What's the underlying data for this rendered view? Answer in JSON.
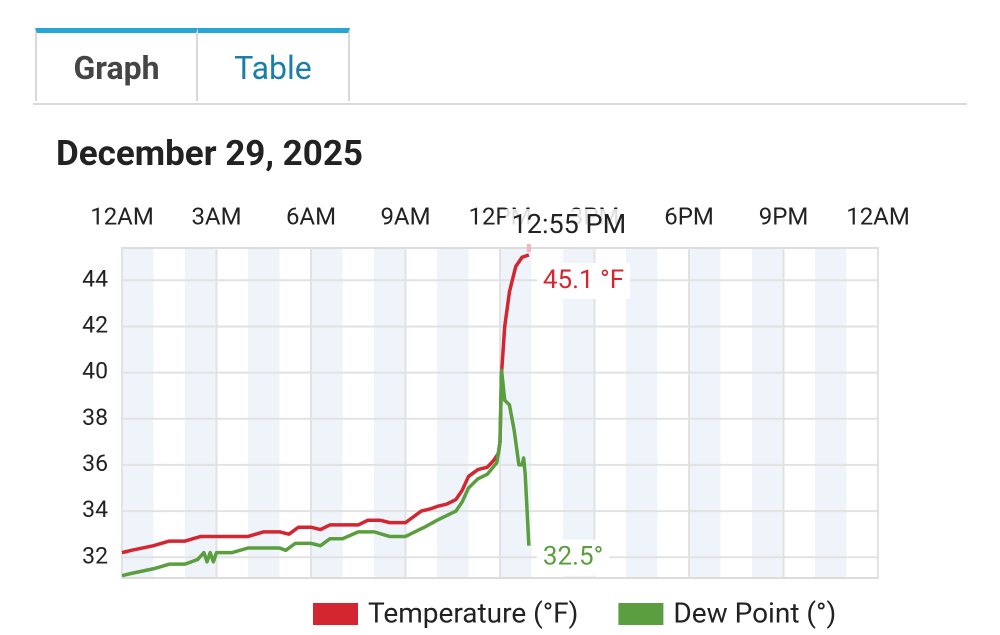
{
  "tabs": [
    "Graph",
    "Table"
  ],
  "date": "December 29, 2025",
  "chart_data": {
    "type": "line",
    "xlim": [
      0,
      24
    ],
    "xticks": [
      {
        "value": 0,
        "label": "12AM"
      },
      {
        "value": 3,
        "label": "3AM"
      },
      {
        "value": 6,
        "label": "6AM"
      },
      {
        "value": 9,
        "label": "9AM"
      },
      {
        "value": 12,
        "label": "12PM"
      },
      {
        "value": 15,
        "label": "3PM"
      },
      {
        "value": 18,
        "label": "6PM"
      },
      {
        "value": 21,
        "label": "9PM"
      },
      {
        "value": 24,
        "label": "12AM"
      }
    ],
    "ylim": [
      31.1,
      45.4
    ],
    "yticks": [
      32,
      34,
      36,
      38,
      40,
      42,
      44
    ],
    "grid": true,
    "cursor_label": "12:55 PM",
    "series": [
      {
        "name": "Temperature (°F)",
        "color": "#d42630",
        "end_label": "45.1 °F",
        "x": [
          0,
          0.3,
          1,
          1.5,
          2,
          2.5,
          3,
          3.5,
          4,
          4.5,
          5,
          5.3,
          5.6,
          6,
          6.3,
          6.6,
          7,
          7.5,
          7.8,
          8.2,
          8.5,
          9,
          9.2,
          9.5,
          9.8,
          10,
          10.3,
          10.6,
          10.8,
          11,
          11.3,
          11.6,
          11.8,
          11.95,
          12.0,
          12.05,
          12.15,
          12.3,
          12.5,
          12.7,
          12.917
        ],
        "values": [
          32.2,
          32.3,
          32.5,
          32.7,
          32.7,
          32.9,
          32.9,
          32.9,
          32.9,
          33.1,
          33.1,
          33.0,
          33.3,
          33.3,
          33.2,
          33.4,
          33.4,
          33.4,
          33.6,
          33.6,
          33.5,
          33.5,
          33.7,
          34.0,
          34.1,
          34.2,
          34.3,
          34.5,
          34.9,
          35.5,
          35.8,
          35.9,
          36.2,
          36.5,
          37.0,
          40.0,
          42.0,
          43.5,
          44.6,
          45.0,
          45.1
        ]
      },
      {
        "name": "Dew Point (°)",
        "color": "#5a9e3f",
        "end_label": "32.5°",
        "x": [
          0,
          0.3,
          1,
          1.5,
          2,
          2.4,
          2.6,
          2.7,
          2.8,
          2.9,
          3.0,
          3.5,
          4,
          4.5,
          5,
          5.2,
          5.5,
          6,
          6.3,
          6.6,
          7,
          7.5,
          8,
          8.5,
          9,
          9.3,
          9.6,
          10,
          10.3,
          10.6,
          10.8,
          11,
          11.3,
          11.6,
          11.9,
          12.0,
          12.05,
          12.15,
          12.3,
          12.45,
          12.6,
          12.7,
          12.75,
          12.8,
          12.917
        ],
        "values": [
          31.2,
          31.3,
          31.5,
          31.7,
          31.7,
          31.9,
          32.2,
          31.8,
          32.2,
          31.8,
          32.2,
          32.2,
          32.4,
          32.4,
          32.4,
          32.3,
          32.6,
          32.6,
          32.5,
          32.8,
          32.8,
          33.1,
          33.1,
          32.9,
          32.9,
          33.1,
          33.3,
          33.6,
          33.8,
          34.0,
          34.4,
          35.0,
          35.4,
          35.6,
          36.1,
          37.0,
          40.1,
          38.8,
          38.6,
          37.5,
          36.0,
          36.0,
          36.3,
          35.6,
          32.5
        ]
      }
    ]
  }
}
